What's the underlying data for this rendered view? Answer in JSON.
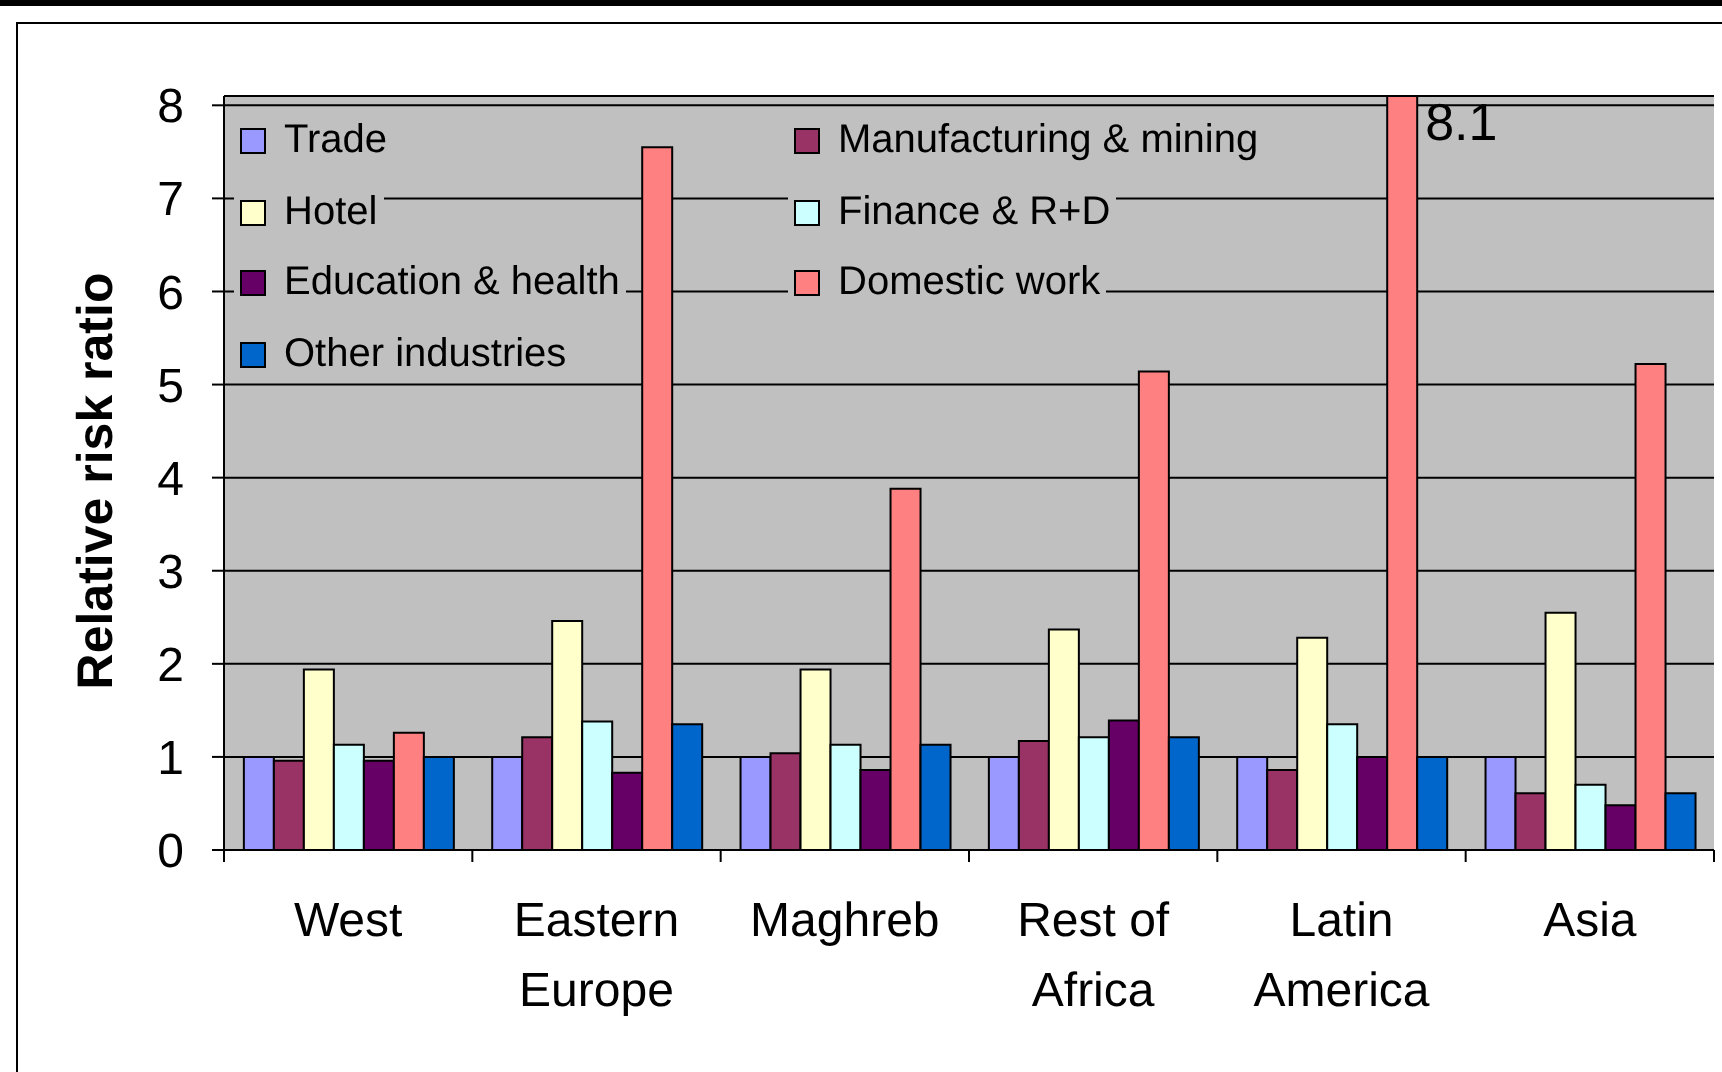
{
  "chart_data": {
    "type": "bar",
    "ylabel": "Relative risk ratio",
    "categories": [
      "West",
      "Eastern Europe",
      "Maghreb",
      "Rest of Africa",
      "Latin America",
      "Asia"
    ],
    "series": [
      {
        "name": "Trade",
        "color": "#9999ff",
        "values": [
          1.0,
          1.0,
          1.0,
          1.0,
          1.0,
          1.0
        ]
      },
      {
        "name": "Manufacturing & mining",
        "color": "#993366",
        "values": [
          0.96,
          1.21,
          1.04,
          1.17,
          0.86,
          0.61
        ]
      },
      {
        "name": "Hotel",
        "color": "#ffffcc",
        "values": [
          1.94,
          2.46,
          1.94,
          2.37,
          2.28,
          2.55
        ]
      },
      {
        "name": "Finance & R+D",
        "color": "#ccffff",
        "values": [
          1.13,
          1.38,
          1.13,
          1.21,
          1.35,
          0.7
        ]
      },
      {
        "name": "Education & health",
        "color": "#660066",
        "values": [
          0.96,
          0.83,
          0.86,
          1.39,
          1.0,
          0.48
        ]
      },
      {
        "name": "Domestic work",
        "color": "#ff8080",
        "values": [
          1.26,
          7.55,
          3.88,
          5.14,
          8.1,
          5.22
        ],
        "value_labels": [
          null,
          null,
          null,
          null,
          "8.1",
          null
        ]
      },
      {
        "name": "Other industries",
        "color": "#0066cc",
        "values": [
          1.0,
          1.35,
          1.13,
          1.21,
          1.0,
          0.61
        ]
      }
    ],
    "ylim": [
      0,
      8.1
    ],
    "yticks": [
      0,
      1,
      2,
      3,
      4,
      5,
      6,
      7,
      8
    ],
    "grid": "y",
    "legend": "top left"
  }
}
